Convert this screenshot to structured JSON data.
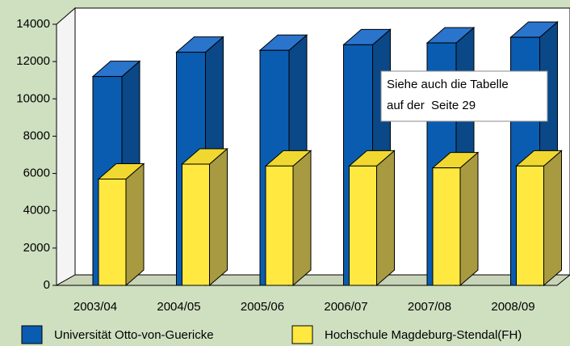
{
  "chart_data": {
    "type": "bar3d",
    "categories": [
      "2003/04",
      "2004/05",
      "2005/06",
      "2006/07",
      "2007/08",
      "2008/09"
    ],
    "series": [
      {
        "name": "Universität Otto-von-Guericke",
        "color": "#0a5cb0",
        "values": [
          11200,
          12500,
          12600,
          12900,
          13000,
          13300
        ]
      },
      {
        "name": "Hochschule Magdeburg-Stendal(FH)",
        "color": "#ffe840",
        "values": [
          5700,
          6500,
          6400,
          6400,
          6300,
          6400
        ]
      }
    ],
    "ylim": [
      0,
      14000
    ],
    "yticks": [
      0,
      2000,
      4000,
      6000,
      8000,
      10000,
      12000,
      14000
    ],
    "annotation": [
      "Siehe auch die Tabelle",
      "auf der  Seite 29"
    ],
    "legend": "bottom"
  }
}
